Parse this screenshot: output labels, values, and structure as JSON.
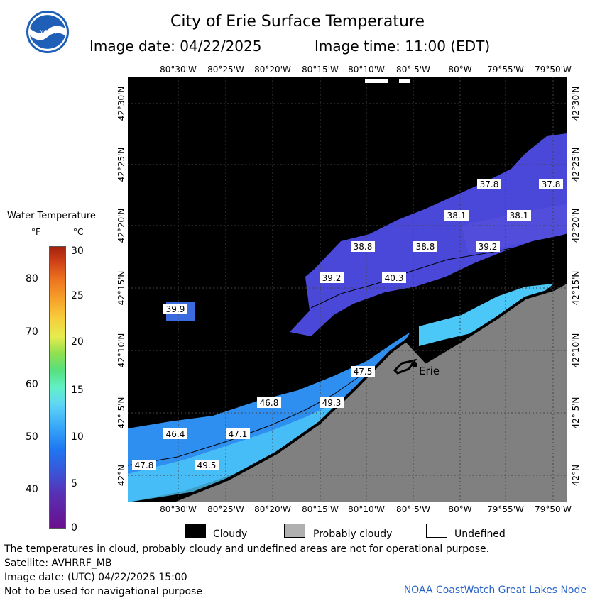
{
  "header": {
    "title": "City of Erie Surface Temperature",
    "image_date": "Image date: 04/22/2025",
    "image_time": "Image time: 11:00 (EDT)",
    "logo_text": "NOAA"
  },
  "axes": {
    "longitude_labels": [
      "80°30'W",
      "80°25'W",
      "80°20'W",
      "80°15'W",
      "80°10'W",
      "80° 5'W",
      "80°W",
      "79°55'W",
      "79°50'W"
    ],
    "latitude_labels": [
      "42°30'N",
      "42°25'N",
      "42°20'N",
      "42°15'N",
      "42°10'N",
      "42° 5'N",
      "42°N"
    ]
  },
  "map": {
    "city_label": "Erie",
    "temperature_labels": [
      "37.8",
      "37.8",
      "38.1",
      "38.1",
      "38.8",
      "38.8",
      "39.2",
      "39.2",
      "40.3",
      "39.9",
      "47.5",
      "46.8",
      "49.3",
      "46.4",
      "47.1",
      "47.8",
      "49.5"
    ],
    "colors": {
      "cloud": "#000000",
      "probably_cloudy": "#808080",
      "undefined": "#ffffff",
      "cold_water": "#4a48d8",
      "mid_water": "#2e8ff0",
      "warm_water": "#4cc8f8"
    }
  },
  "legend": {
    "title": "Water Temperature",
    "unit_f": "°F",
    "unit_c": "°C",
    "f_ticks": [
      "80",
      "70",
      "60",
      "50",
      "40"
    ],
    "c_ticks": [
      "30",
      "25",
      "20",
      "15",
      "10",
      "5",
      "0"
    ],
    "items": [
      "Cloudy",
      "Probably cloudy",
      "Undefined"
    ]
  },
  "footer": {
    "note": "The temperatures in cloud, probably cloudy and undefined areas are not for operational purpose.",
    "satellite": "Satellite: AVHRRF_MB",
    "utc_date": "Image date: (UTC) 04/22/2025   15:00",
    "nav_warning": "Not to be used for navigational purpose",
    "credit": "NOAA CoastWatch Great Lakes Node"
  }
}
